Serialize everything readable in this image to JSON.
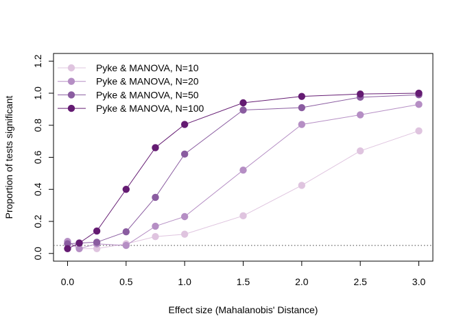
{
  "chart_data": {
    "type": "line",
    "title": "",
    "xlabel": "Effect size (Mahalanobis' Distance)",
    "ylabel": "Proportion of tests significant",
    "xlim": [
      -0.12,
      3.12
    ],
    "ylim": [
      -0.048,
      1.248
    ],
    "xticks": [
      0.0,
      0.5,
      1.0,
      1.5,
      2.0,
      2.5,
      3.0
    ],
    "xtick_labels": [
      "0.0",
      "0.5",
      "1.0",
      "1.5",
      "2.0",
      "2.5",
      "3.0"
    ],
    "yticks": [
      0.0,
      0.2,
      0.4,
      0.6,
      0.8,
      1.0,
      1.2
    ],
    "ytick_labels": [
      "0.0",
      "0.2",
      "0.4",
      "0.6",
      "0.8",
      "1.0",
      "1.2"
    ],
    "x": [
      0,
      0.1,
      0.25,
      0.5,
      0.75,
      1.0,
      1.5,
      2.0,
      2.5,
      3.0
    ],
    "reference_line": {
      "y": 0.05,
      "style": "dotted",
      "color": "#666666"
    },
    "legend_position": "top-left",
    "grid": false,
    "series": [
      {
        "name": "Pyke & MANOVA, N=10",
        "color": "#DFC4DF",
        "values": [
          0.06,
          0.03,
          0.03,
          0.06,
          0.105,
          0.12,
          0.235,
          0.425,
          0.64,
          0.765
        ]
      },
      {
        "name": "Pyke & MANOVA, N=20",
        "color": "#B58EC4",
        "values": [
          0.075,
          0.03,
          0.06,
          0.05,
          0.17,
          0.23,
          0.52,
          0.805,
          0.865,
          0.93
        ]
      },
      {
        "name": "Pyke & MANOVA, N=50",
        "color": "#8A5CA0",
        "values": [
          0.06,
          0.065,
          0.07,
          0.135,
          0.35,
          0.62,
          0.895,
          0.91,
          0.975,
          0.99
        ]
      },
      {
        "name": "Pyke & MANOVA, N=100",
        "color": "#641B72",
        "values": [
          0.03,
          0.065,
          0.14,
          0.4,
          0.66,
          0.805,
          0.94,
          0.98,
          0.995,
          1.0
        ]
      }
    ]
  }
}
